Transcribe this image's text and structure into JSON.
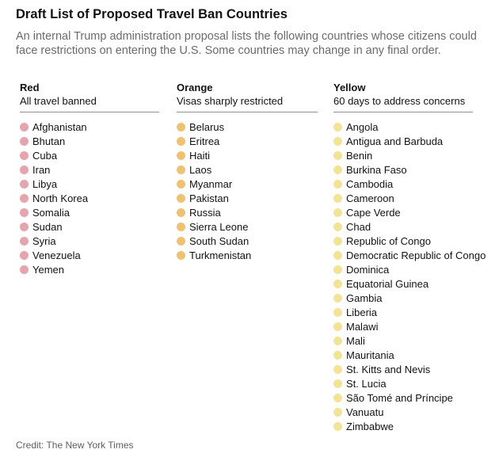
{
  "title": "Draft List of Proposed Travel Ban Countries",
  "subtitle": "An internal Trump administration proposal lists the following countries whose citizens could face restrictions on entering the U.S. Some countries may change in any final order.",
  "colors": {
    "red": "#e8a3ab",
    "orange": "#f0c26e",
    "yellow": "#f2e493"
  },
  "columns": {
    "red": {
      "name": "Red",
      "description": "All travel banned",
      "countries": [
        "Afghanistan",
        "Bhutan",
        "Cuba",
        "Iran",
        "Libya",
        "North Korea",
        "Somalia",
        "Sudan",
        "Syria",
        "Venezuela",
        "Yemen"
      ]
    },
    "orange": {
      "name": "Orange",
      "description": "Visas sharply restricted",
      "countries": [
        "Belarus",
        "Eritrea",
        "Haiti",
        "Laos",
        "Myanmar",
        "Pakistan",
        "Russia",
        "Sierra Leone",
        "South Sudan",
        "Turkmenistan"
      ]
    },
    "yellow": {
      "name": "Yellow",
      "description": "60 days to address concerns",
      "countries": [
        "Angola",
        "Antigua and Barbuda",
        "Benin",
        "Burkina Faso",
        "Cambodia",
        "Cameroon",
        "Cape Verde",
        "Chad",
        "Republic of Congo",
        "Democratic Republic of Congo",
        "Dominica",
        "Equatorial Guinea",
        "Gambia",
        "Liberia",
        "Malawi",
        "Mali",
        "Mauritania",
        "St. Kitts and Nevis",
        "St. Lucia",
        "São Tomé and Príncipe",
        "Vanuatu",
        "Zimbabwe"
      ]
    }
  },
  "credit": "Credit: The New York Times"
}
